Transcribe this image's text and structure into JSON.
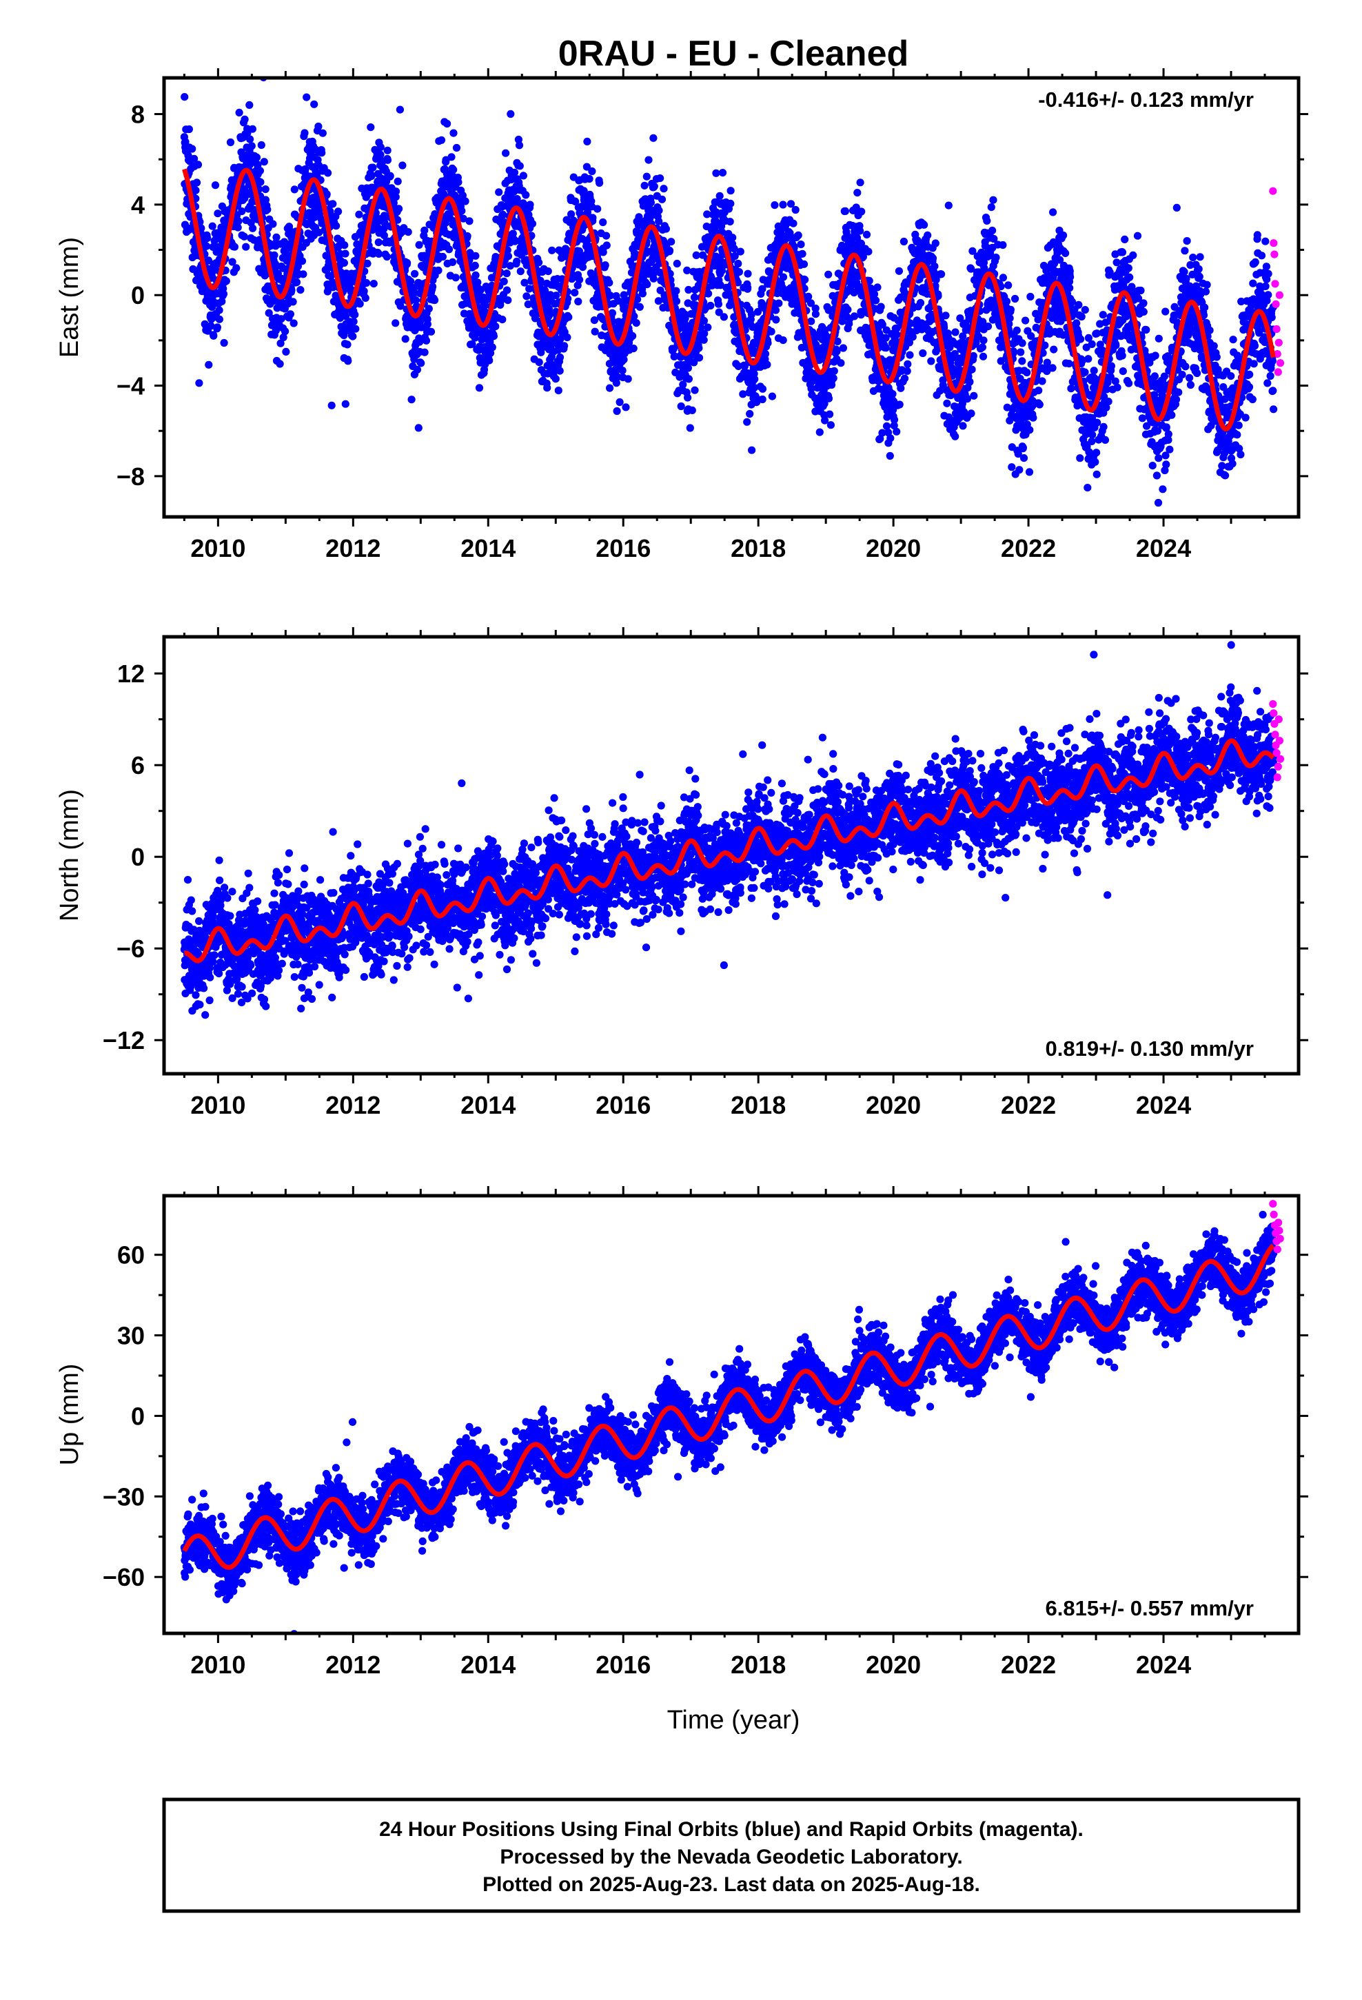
{
  "title": "0RAU  - EU - Cleaned",
  "x_axis_label": "Time (year)",
  "footer_lines": [
    "24 Hour Positions Using Final Orbits (blue) and Rapid Orbits (magenta).",
    "Processed by the Nevada Geodetic Laboratory.",
    "Plotted on 2025-Aug-23. Last data on 2025-Aug-18."
  ],
  "colors": {
    "final_orbits": "#0000ff",
    "rapid_orbits": "#ff00ff",
    "model_fit": "#ff0000",
    "frame": "#000000"
  },
  "chart_data": [
    {
      "type": "scatter",
      "ylabel": "East (mm)",
      "rate_label": "-0.416+/- 0.123 mm/yr",
      "rate_position": "top-right",
      "xlim": [
        2009.2,
        2026.0
      ],
      "ylim": [
        -9.8,
        9.6
      ],
      "xticks": [
        2010,
        2012,
        2014,
        2016,
        2018,
        2020,
        2022,
        2024
      ],
      "xtick_labels": [
        "2010",
        "2012",
        "2014",
        "2016",
        "2018",
        "2020",
        "2022",
        "2024"
      ],
      "yticks": [
        -8,
        -4,
        0,
        4,
        8
      ],
      "ytick_labels": [
        "−8",
        "−4",
        "0",
        "4",
        "8"
      ],
      "model": {
        "t0": 2009.5,
        "t_end": 2025.63,
        "offset_at_t0": 3.2,
        "rate_mm_per_yr": -0.416,
        "annual_amplitude": 2.7,
        "annual_peak_phase_year": 0.42,
        "semiannual_amplitude": 0.0
      },
      "scatter_noise_sd": 1.3,
      "rapid_values": [
        4.6,
        2.3,
        1.8,
        0.5,
        -0.4,
        -1.5,
        -2.6,
        -3.4,
        -2.1,
        0.0,
        -3.0
      ]
    },
    {
      "type": "scatter",
      "ylabel": "North (mm)",
      "rate_label": "0.819+/- 0.130 mm/yr",
      "rate_position": "bottom-right",
      "xlim": [
        2009.2,
        2026.0
      ],
      "ylim": [
        -14.2,
        14.4
      ],
      "xticks": [
        2010,
        2012,
        2014,
        2016,
        2018,
        2020,
        2022,
        2024
      ],
      "xtick_labels": [
        "2010",
        "2012",
        "2014",
        "2016",
        "2018",
        "2020",
        "2022",
        "2024"
      ],
      "yticks": [
        -12,
        -6,
        0,
        6,
        12
      ],
      "ytick_labels": [
        "−12",
        "−6",
        "0",
        "6",
        "12"
      ],
      "model": {
        "t0": 2009.5,
        "t_end": 2025.63,
        "offset_at_t0": -6.3,
        "rate_mm_per_yr": 0.819,
        "annual_amplitude": 0.6,
        "annual_peak_phase_year": 0.0,
        "semiannual_amplitude": 0.6
      },
      "scatter_noise_sd": 1.5,
      "rapid_values": [
        10.0,
        9.4,
        8.7,
        8.0,
        7.3,
        6.8,
        5.2,
        5.9,
        9.0,
        7.6,
        6.4
      ]
    },
    {
      "type": "scatter",
      "ylabel": "Up (mm)",
      "rate_label": "6.815+/- 0.557 mm/yr",
      "rate_position": "bottom-right",
      "xlim": [
        2009.2,
        2026.0
      ],
      "ylim": [
        -81,
        82
      ],
      "xticks": [
        2010,
        2012,
        2014,
        2016,
        2018,
        2020,
        2022,
        2024
      ],
      "xtick_labels": [
        "2010",
        "2012",
        "2014",
        "2016",
        "2018",
        "2020",
        "2022",
        "2024"
      ],
      "yticks": [
        -60,
        -30,
        0,
        30,
        60
      ],
      "ytick_labels": [
        "−60",
        "−30",
        "0",
        "30",
        "60"
      ],
      "model": {
        "t0": 2009.5,
        "t_end": 2025.63,
        "offset_at_t0": -53.5,
        "rate_mm_per_yr": 6.815,
        "annual_amplitude": 7.5,
        "annual_peak_phase_year": 0.68,
        "semiannual_amplitude": 0.0
      },
      "scatter_noise_sd": 5.2,
      "rapid_values": [
        79,
        75,
        71,
        68,
        65,
        62,
        72,
        69,
        66
      ]
    }
  ]
}
